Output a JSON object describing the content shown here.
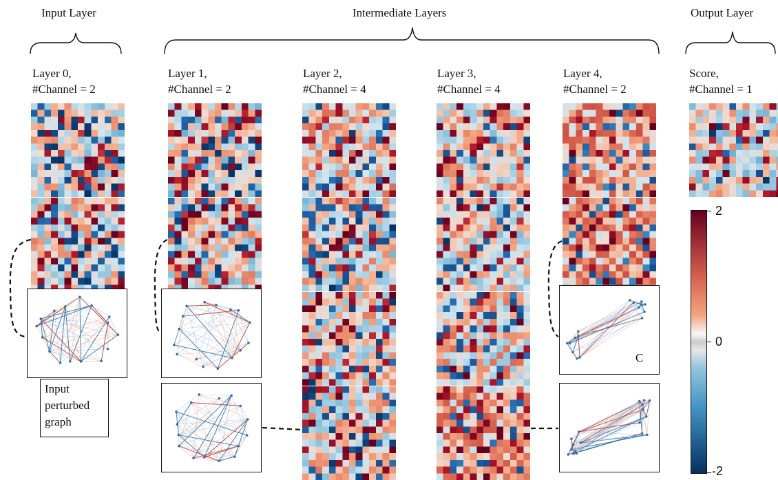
{
  "groups": {
    "input": "Input Layer",
    "intermediate": "Intermediate Layers",
    "output": "Output Layer"
  },
  "columns": [
    {
      "line1": "Layer 0,",
      "line2": "#Channel = 2"
    },
    {
      "line1": "Layer 1,",
      "line2": "#Channel = 2"
    },
    {
      "line1": "Layer 2,",
      "line2": "#Channel = 4"
    },
    {
      "line1": "Layer 3,",
      "line2": "#Channel = 4"
    },
    {
      "line1": "Layer 4,",
      "line2": "#Channel = 2"
    },
    {
      "line1": "Score,",
      "line2": "#Channel = 1"
    }
  ],
  "note": {
    "lines": [
      "Input",
      "perturbed",
      "graph"
    ]
  },
  "graph_label": "C",
  "colorbar": {
    "max": "2",
    "mid": "0",
    "min": "-2"
  },
  "colors": {
    "neg_dark": "#053061",
    "neg_mid": "#4393c3",
    "neutral": "#d9d9d9",
    "pos_mid": "#d6604d",
    "pos_dark": "#67001f"
  }
}
